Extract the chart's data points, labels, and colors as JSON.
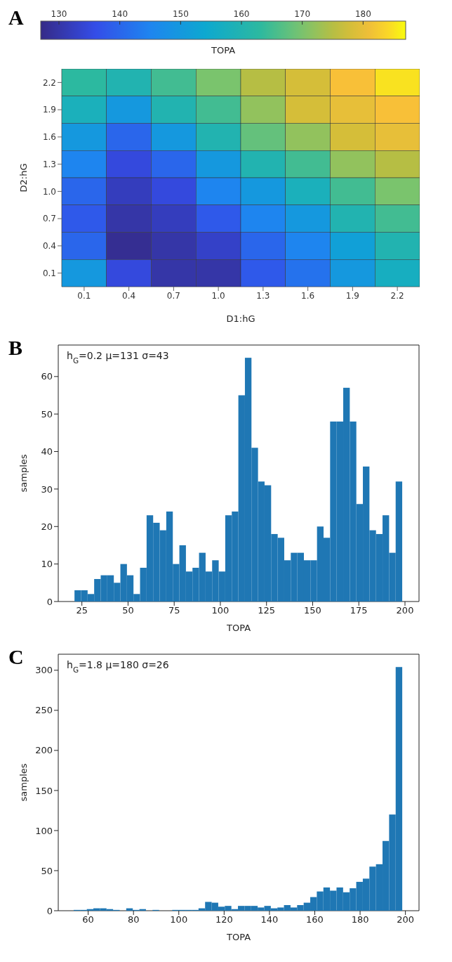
{
  "chart_data": [
    {
      "type": "heatmap",
      "annotations": [
        "A"
      ],
      "xlabel": "D1:hG",
      "ylabel": "D2:hG",
      "clabel": "TOPA",
      "categories": [
        "0.1",
        "0.4",
        "0.7",
        "1.0",
        "1.3",
        "1.6",
        "1.9",
        "2.2"
      ],
      "y_categories": [
        "2.2",
        "1.9",
        "1.6",
        "1.3",
        "1.0",
        "0.7",
        "0.4",
        "0.1"
      ],
      "cells": [
        [
          163,
          160,
          165,
          170,
          175,
          178,
          182,
          185
        ],
        [
          158,
          150,
          160,
          165,
          172,
          178,
          180,
          182
        ],
        [
          150,
          140,
          150,
          160,
          168,
          172,
          178,
          180
        ],
        [
          145,
          135,
          140,
          150,
          160,
          165,
          172,
          175
        ],
        [
          140,
          132,
          135,
          145,
          150,
          158,
          165,
          170
        ],
        [
          138,
          130,
          132,
          138,
          145,
          150,
          160,
          165
        ],
        [
          140,
          128,
          130,
          133,
          140,
          145,
          152,
          160
        ],
        [
          150,
          135,
          130,
          130,
          138,
          142,
          150,
          157
        ]
      ],
      "clim": [
        127,
        187
      ],
      "cticks": [
        130,
        140,
        150,
        160,
        170,
        180
      ]
    },
    {
      "type": "histogram",
      "annotations": [
        "B",
        "h$_{G}$=0.2  μ=131  σ=43"
      ],
      "xlabel": "TOPA",
      "ylabel": "samples",
      "color": "#1f77b4",
      "bins": [
        21,
        24.55,
        28.1,
        31.65,
        35.2,
        38.75,
        42.3,
        45.85,
        49.4,
        52.95,
        56.5,
        60.05,
        63.6,
        67.15,
        70.7,
        74.25,
        77.8,
        81.35,
        84.9,
        88.45,
        92,
        95.55,
        99.1,
        102.65,
        106.2,
        109.75,
        113.3,
        116.85,
        120.4,
        123.95,
        127.5,
        131.05,
        134.6,
        138.15,
        141.7,
        145.25,
        148.8,
        152.35,
        155.9,
        159.45,
        163,
        166.55,
        170.1,
        173.65,
        177.2,
        180.75,
        184.3,
        187.85,
        191.4,
        194.95,
        198.5
      ],
      "values": [
        3,
        3,
        2,
        6,
        7,
        7,
        5,
        10,
        7,
        2,
        9,
        23,
        21,
        19,
        24,
        10,
        15,
        8,
        9,
        13,
        8,
        11,
        8,
        23,
        24,
        55,
        65,
        41,
        32,
        31,
        18,
        17,
        11,
        13,
        13,
        11,
        11,
        20,
        17,
        48,
        48,
        57,
        48,
        26,
        36,
        19,
        18,
        23,
        13,
        32
      ],
      "xlim": [
        12.2,
        207.6
      ],
      "ylim": [
        0,
        68.4
      ],
      "xticks": [
        25,
        50,
        75,
        100,
        125,
        150,
        175,
        200
      ],
      "yticks": [
        0,
        10,
        20,
        30,
        40,
        50,
        60
      ],
      "grid": false
    },
    {
      "type": "histogram",
      "annotations": [
        "C",
        "h$_{G}$=1.8  μ=180  σ=26"
      ],
      "xlabel": "TOPA",
      "ylabel": "samples",
      "color": "#1f77b4",
      "bins": [
        53.6,
        56.5,
        59.4,
        62.3,
        65.2,
        68.1,
        71,
        73.9,
        76.8,
        79.7,
        82.6,
        85.5,
        88.4,
        91.3,
        94.2,
        97.1,
        100,
        102.9,
        105.8,
        108.7,
        111.6,
        114.5,
        117.4,
        120.3,
        123.2,
        126.1,
        129,
        131.9,
        134.8,
        137.7,
        140.6,
        143.5,
        146.4,
        149.3,
        152.2,
        155.1,
        158,
        160.9,
        163.8,
        166.7,
        169.6,
        172.5,
        175.4,
        178.3,
        181.2,
        184.1,
        187,
        189.9,
        192.8,
        195.7,
        198.6
      ],
      "values": [
        1,
        1,
        2,
        3,
        3,
        2,
        1,
        0,
        3,
        1,
        2,
        0,
        1,
        0,
        0,
        1,
        1,
        1,
        1,
        3,
        11,
        10,
        5,
        6,
        2,
        6,
        6,
        6,
        4,
        6,
        3,
        4,
        7,
        4,
        7,
        10,
        17,
        24,
        29,
        25,
        29,
        23,
        28,
        36,
        40,
        55,
        58,
        87,
        120,
        304
      ],
      "xlim": [
        46.8,
        206
      ],
      "ylim": [
        0,
        320
      ],
      "xticks": [
        60,
        80,
        100,
        120,
        140,
        160,
        180,
        200
      ],
      "yticks": [
        0,
        50,
        100,
        150,
        200,
        250,
        300
      ],
      "grid": false
    }
  ]
}
